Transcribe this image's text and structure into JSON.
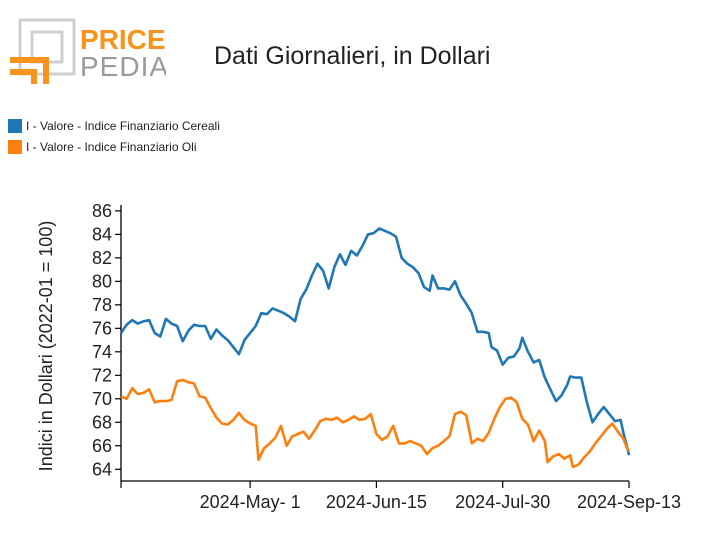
{
  "logo": {
    "word1": "PRICE",
    "word2": "PEDIA",
    "orange": "#f7941d",
    "gray": "#9a9a9a"
  },
  "title": "Dati Giornalieri, in Dollari",
  "chart_data": {
    "type": "line",
    "title": "Dati Giornalieri, in Dollari",
    "ylabel": "Indici in Dollari (2022-01 = 100)",
    "xlabel": "",
    "ylim": [
      63,
      86.5
    ],
    "yticks": [
      64,
      66,
      68,
      70,
      72,
      74,
      76,
      78,
      80,
      82,
      84,
      86
    ],
    "xticks": [
      {
        "date": "2024-05-01",
        "label": "2024-May- 1"
      },
      {
        "date": "2024-06-15",
        "label": "2024-Jun-15"
      },
      {
        "date": "2024-07-30",
        "label": "2024-Jul-30"
      },
      {
        "date": "2024-09-13",
        "label": "2024-Sep-13"
      }
    ],
    "xlim": [
      "2024-03-16",
      "2024-09-13"
    ],
    "legend_position": "top-left",
    "series": [
      {
        "name": "I - Valore - Indice Finanziario Cereali",
        "color": "#1f77b4",
        "points": [
          [
            "2024-03-16",
            75.6
          ],
          [
            "2024-03-18",
            76.3
          ],
          [
            "2024-03-20",
            76.7
          ],
          [
            "2024-03-22",
            76.4
          ],
          [
            "2024-03-24",
            76.6
          ],
          [
            "2024-03-26",
            76.7
          ],
          [
            "2024-03-28",
            75.6
          ],
          [
            "2024-03-30",
            75.3
          ],
          [
            "2024-04-01",
            76.8
          ],
          [
            "2024-04-03",
            76.4
          ],
          [
            "2024-04-05",
            76.2
          ],
          [
            "2024-04-07",
            74.9
          ],
          [
            "2024-04-09",
            75.8
          ],
          [
            "2024-04-11",
            76.3
          ],
          [
            "2024-04-13",
            76.2
          ],
          [
            "2024-04-15",
            76.2
          ],
          [
            "2024-04-17",
            75.1
          ],
          [
            "2024-04-19",
            75.9
          ],
          [
            "2024-04-21",
            75.4
          ],
          [
            "2024-04-23",
            75.0
          ],
          [
            "2024-04-25",
            74.4
          ],
          [
            "2024-04-27",
            73.8
          ],
          [
            "2024-04-29",
            75.0
          ],
          [
            "2024-05-01",
            75.6
          ],
          [
            "2024-05-03",
            76.2
          ],
          [
            "2024-05-05",
            77.3
          ],
          [
            "2024-05-07",
            77.2
          ],
          [
            "2024-05-09",
            77.7
          ],
          [
            "2024-05-11",
            77.5
          ],
          [
            "2024-05-13",
            77.3
          ],
          [
            "2024-05-15",
            77.0
          ],
          [
            "2024-05-17",
            76.6
          ],
          [
            "2024-05-19",
            78.5
          ],
          [
            "2024-05-21",
            79.3
          ],
          [
            "2024-05-23",
            80.5
          ],
          [
            "2024-05-25",
            81.5
          ],
          [
            "2024-05-27",
            80.9
          ],
          [
            "2024-05-29",
            79.4
          ],
          [
            "2024-05-31",
            81.2
          ],
          [
            "2024-06-02",
            82.3
          ],
          [
            "2024-06-04",
            81.4
          ],
          [
            "2024-06-06",
            82.6
          ],
          [
            "2024-06-08",
            82.2
          ],
          [
            "2024-06-10",
            83.0
          ],
          [
            "2024-06-12",
            84.0
          ],
          [
            "2024-06-14",
            84.1
          ],
          [
            "2024-06-16",
            84.5
          ],
          [
            "2024-06-18",
            84.3
          ],
          [
            "2024-06-20",
            84.1
          ],
          [
            "2024-06-22",
            83.8
          ],
          [
            "2024-06-24",
            82.0
          ],
          [
            "2024-06-26",
            81.5
          ],
          [
            "2024-06-28",
            81.2
          ],
          [
            "2024-06-30",
            80.7
          ],
          [
            "2024-07-02",
            79.5
          ],
          [
            "2024-07-04",
            79.2
          ],
          [
            "2024-07-05",
            80.5
          ],
          [
            "2024-07-07",
            79.4
          ],
          [
            "2024-07-09",
            79.4
          ],
          [
            "2024-07-11",
            79.3
          ],
          [
            "2024-07-13",
            80.0
          ],
          [
            "2024-07-15",
            78.8
          ],
          [
            "2024-07-17",
            78.1
          ],
          [
            "2024-07-19",
            77.3
          ],
          [
            "2024-07-21",
            75.7
          ],
          [
            "2024-07-23",
            75.7
          ],
          [
            "2024-07-25",
            75.6
          ],
          [
            "2024-07-26",
            74.4
          ],
          [
            "2024-07-28",
            74.1
          ],
          [
            "2024-07-30",
            72.9
          ],
          [
            "2024-08-01",
            73.5
          ],
          [
            "2024-08-03",
            73.6
          ],
          [
            "2024-08-05",
            74.3
          ],
          [
            "2024-08-06",
            75.2
          ],
          [
            "2024-08-08",
            74.0
          ],
          [
            "2024-08-10",
            73.1
          ],
          [
            "2024-08-12",
            73.3
          ],
          [
            "2024-08-14",
            71.8
          ],
          [
            "2024-08-16",
            70.8
          ],
          [
            "2024-08-18",
            69.8
          ],
          [
            "2024-08-20",
            70.3
          ],
          [
            "2024-08-22",
            71.2
          ],
          [
            "2024-08-23",
            71.9
          ],
          [
            "2024-08-25",
            71.8
          ],
          [
            "2024-08-27",
            71.8
          ],
          [
            "2024-08-29",
            69.7
          ],
          [
            "2024-08-31",
            68.0
          ],
          [
            "2024-09-02",
            68.7
          ],
          [
            "2024-09-04",
            69.3
          ],
          [
            "2024-09-06",
            68.7
          ],
          [
            "2024-09-08",
            68.1
          ],
          [
            "2024-09-10",
            68.2
          ],
          [
            "2024-09-11",
            67.1
          ],
          [
            "2024-09-12",
            66.2
          ],
          [
            "2024-09-13",
            65.2
          ]
        ]
      },
      {
        "name": "I - Valore - Indice Finanziario Oli",
        "color": "#ff7f0e",
        "points": [
          [
            "2024-03-16",
            70.2
          ],
          [
            "2024-03-18",
            70.0
          ],
          [
            "2024-03-20",
            70.9
          ],
          [
            "2024-03-22",
            70.4
          ],
          [
            "2024-03-24",
            70.5
          ],
          [
            "2024-03-26",
            70.8
          ],
          [
            "2024-03-28",
            69.7
          ],
          [
            "2024-03-30",
            69.8
          ],
          [
            "2024-04-01",
            69.8
          ],
          [
            "2024-04-03",
            69.9
          ],
          [
            "2024-04-05",
            71.5
          ],
          [
            "2024-04-07",
            71.6
          ],
          [
            "2024-04-09",
            71.4
          ],
          [
            "2024-04-11",
            71.3
          ],
          [
            "2024-04-13",
            70.2
          ],
          [
            "2024-04-15",
            70.1
          ],
          [
            "2024-04-17",
            69.2
          ],
          [
            "2024-04-19",
            68.4
          ],
          [
            "2024-04-21",
            67.9
          ],
          [
            "2024-04-23",
            67.8
          ],
          [
            "2024-04-25",
            68.2
          ],
          [
            "2024-04-27",
            68.8
          ],
          [
            "2024-04-29",
            68.2
          ],
          [
            "2024-05-01",
            67.9
          ],
          [
            "2024-05-03",
            67.7
          ],
          [
            "2024-05-04",
            64.8
          ],
          [
            "2024-05-06",
            65.8
          ],
          [
            "2024-05-08",
            66.2
          ],
          [
            "2024-05-10",
            66.7
          ],
          [
            "2024-05-12",
            67.7
          ],
          [
            "2024-05-14",
            66.0
          ],
          [
            "2024-05-16",
            66.8
          ],
          [
            "2024-05-18",
            67.0
          ],
          [
            "2024-05-20",
            67.2
          ],
          [
            "2024-05-22",
            66.6
          ],
          [
            "2024-05-24",
            67.3
          ],
          [
            "2024-05-26",
            68.1
          ],
          [
            "2024-05-28",
            68.3
          ],
          [
            "2024-05-30",
            68.2
          ],
          [
            "2024-06-01",
            68.4
          ],
          [
            "2024-06-03",
            68.0
          ],
          [
            "2024-06-05",
            68.2
          ],
          [
            "2024-06-07",
            68.5
          ],
          [
            "2024-06-09",
            68.2
          ],
          [
            "2024-06-11",
            68.3
          ],
          [
            "2024-06-13",
            68.7
          ],
          [
            "2024-06-15",
            67.0
          ],
          [
            "2024-06-17",
            66.5
          ],
          [
            "2024-06-19",
            66.8
          ],
          [
            "2024-06-21",
            67.7
          ],
          [
            "2024-06-23",
            66.2
          ],
          [
            "2024-06-25",
            66.2
          ],
          [
            "2024-06-27",
            66.4
          ],
          [
            "2024-06-29",
            66.2
          ],
          [
            "2024-07-01",
            66.0
          ],
          [
            "2024-07-03",
            65.3
          ],
          [
            "2024-07-05",
            65.8
          ],
          [
            "2024-07-07",
            66.0
          ],
          [
            "2024-07-09",
            66.4
          ],
          [
            "2024-07-11",
            66.8
          ],
          [
            "2024-07-13",
            68.7
          ],
          [
            "2024-07-15",
            68.9
          ],
          [
            "2024-07-17",
            68.6
          ],
          [
            "2024-07-19",
            66.2
          ],
          [
            "2024-07-21",
            66.6
          ],
          [
            "2024-07-23",
            66.4
          ],
          [
            "2024-07-25",
            67.1
          ],
          [
            "2024-07-27",
            68.3
          ],
          [
            "2024-07-29",
            69.3
          ],
          [
            "2024-07-31",
            70.0
          ],
          [
            "2024-08-02",
            70.1
          ],
          [
            "2024-08-04",
            69.7
          ],
          [
            "2024-08-06",
            68.3
          ],
          [
            "2024-08-08",
            67.8
          ],
          [
            "2024-08-10",
            66.4
          ],
          [
            "2024-08-12",
            67.3
          ],
          [
            "2024-08-14",
            66.4
          ],
          [
            "2024-08-15",
            64.6
          ],
          [
            "2024-08-17",
            65.1
          ],
          [
            "2024-08-19",
            65.3
          ],
          [
            "2024-08-21",
            64.9
          ],
          [
            "2024-08-23",
            65.2
          ],
          [
            "2024-08-24",
            64.2
          ],
          [
            "2024-08-26",
            64.4
          ],
          [
            "2024-08-28",
            65.0
          ],
          [
            "2024-08-30",
            65.5
          ],
          [
            "2024-09-01",
            66.2
          ],
          [
            "2024-09-03",
            66.8
          ],
          [
            "2024-09-05",
            67.4
          ],
          [
            "2024-09-07",
            67.9
          ],
          [
            "2024-09-09",
            67.2
          ],
          [
            "2024-09-11",
            66.6
          ],
          [
            "2024-09-12",
            66.0
          ],
          [
            "2024-09-13",
            65.5
          ]
        ]
      }
    ]
  }
}
